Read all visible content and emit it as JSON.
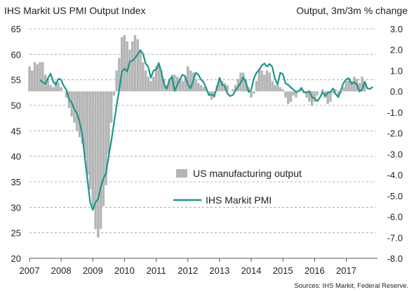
{
  "chart_data": {
    "type": "bar+line",
    "title_left": "IHS  Markit US PMI Output Index",
    "title_right": "Output, 3m/3m  % change",
    "source": "Sources:  IHS Markit,  Federal Reserve.",
    "x_ticks": [
      "2007",
      "2008",
      "2009",
      "2010",
      "2011",
      "2012",
      "2013",
      "2014",
      "2015",
      "2016",
      "2017"
    ],
    "x_range": [
      2007.0,
      2017.92
    ],
    "y_left": {
      "ticks": [
        "20",
        "25",
        "30",
        "35",
        "40",
        "45",
        "50",
        "55",
        "60",
        "65"
      ],
      "range": [
        20,
        65
      ]
    },
    "y_right": {
      "ticks": [
        "-8.0",
        "-7.0",
        "-6.0",
        "-5.0",
        "-4.0",
        "-3.0",
        "-2.0",
        "-1.0",
        "0.0",
        "1.0",
        "2.0",
        "3.0"
      ],
      "range": [
        -8.0,
        3.0
      ]
    },
    "grid": true,
    "legend_position": "bottom-center",
    "colors": {
      "bars": "#b5b5b5",
      "line": "#1a978a",
      "grid": "#9a9a9a"
    },
    "series": [
      {
        "name": "US manufacturing output",
        "kind": "bar",
        "axis": "right",
        "x": [
          2007.0,
          2007.083,
          2007.167,
          2007.25,
          2007.333,
          2007.417,
          2007.5,
          2007.583,
          2007.667,
          2007.75,
          2007.833,
          2007.917,
          2008.0,
          2008.083,
          2008.167,
          2008.25,
          2008.333,
          2008.417,
          2008.5,
          2008.583,
          2008.667,
          2008.75,
          2008.833,
          2008.917,
          2009.0,
          2009.083,
          2009.167,
          2009.25,
          2009.333,
          2009.417,
          2009.5,
          2009.583,
          2009.667,
          2009.75,
          2009.833,
          2009.917,
          2010.0,
          2010.083,
          2010.167,
          2010.25,
          2010.333,
          2010.417,
          2010.5,
          2010.583,
          2010.667,
          2010.75,
          2010.833,
          2010.917,
          2011.0,
          2011.083,
          2011.167,
          2011.25,
          2011.333,
          2011.417,
          2011.5,
          2011.583,
          2011.667,
          2011.75,
          2011.833,
          2011.917,
          2012.0,
          2012.083,
          2012.167,
          2012.25,
          2012.333,
          2012.417,
          2012.5,
          2012.583,
          2012.667,
          2012.75,
          2012.833,
          2012.917,
          2013.0,
          2013.083,
          2013.167,
          2013.25,
          2013.333,
          2013.417,
          2013.5,
          2013.583,
          2013.667,
          2013.75,
          2013.833,
          2013.917,
          2014.0,
          2014.083,
          2014.167,
          2014.25,
          2014.333,
          2014.417,
          2014.5,
          2014.583,
          2014.667,
          2014.75,
          2014.833,
          2014.917,
          2015.0,
          2015.083,
          2015.167,
          2015.25,
          2015.333,
          2015.417,
          2015.5,
          2015.583,
          2015.667,
          2015.75,
          2015.833,
          2015.917,
          2016.0,
          2016.083,
          2016.167,
          2016.25,
          2016.333,
          2016.417,
          2016.5,
          2016.583,
          2016.667,
          2016.75,
          2016.833,
          2016.917,
          2017.0,
          2017.083,
          2017.167,
          2017.25,
          2017.333,
          2017.417,
          2017.5,
          2017.583
        ],
        "values": [
          1.2,
          1.0,
          1.4,
          1.3,
          1.4,
          1.4,
          0.8,
          0.6,
          0.3,
          0.2,
          0.5,
          0.4,
          0.2,
          0.0,
          -0.3,
          -0.8,
          -1.2,
          -1.5,
          -1.9,
          -2.2,
          -2.5,
          -3.2,
          -4.0,
          -4.7,
          -5.5,
          -6.6,
          -7.0,
          -6.6,
          -5.5,
          -4.5,
          -3.0,
          -1.5,
          -0.2,
          1.0,
          1.6,
          2.6,
          2.7,
          2.4,
          2.0,
          2.4,
          2.7,
          2.5,
          2.0,
          1.4,
          1.0,
          0.7,
          0.5,
          0.7,
          1.2,
          1.3,
          1.0,
          0.6,
          0.3,
          0.6,
          0.8,
          0.8,
          0.7,
          0.6,
          0.5,
          0.7,
          1.2,
          1.0,
          0.9,
          0.6,
          0.4,
          0.3,
          0.2,
          0.2,
          -0.2,
          -0.4,
          -0.3,
          0.3,
          0.6,
          0.5,
          0.4,
          0.3,
          0.0,
          0.1,
          0.3,
          0.6,
          0.9,
          0.9,
          0.6,
          0.2,
          -0.3,
          -0.1,
          0.5,
          1.1,
          1.0,
          0.8,
          1.0,
          0.9,
          0.5,
          0.3,
          0.3,
          0.2,
          0.1,
          -0.3,
          -0.6,
          -0.5,
          -0.2,
          -0.3,
          0.0,
          0.2,
          -0.1,
          -0.3,
          -0.5,
          -0.7,
          -0.5,
          -0.2,
          0.0,
          0.1,
          -0.3,
          -0.6,
          -0.5,
          -0.1,
          0.1,
          -0.2,
          -0.1,
          0.2,
          0.5,
          0.6,
          0.5,
          0.7,
          0.6,
          0.4,
          0.7,
          0.5
        ]
      },
      {
        "name": "IHS Markit PMI",
        "kind": "line",
        "axis": "left",
        "x": [
          2007.333,
          2007.417,
          2007.5,
          2007.583,
          2007.667,
          2007.75,
          2007.833,
          2007.917,
          2008.0,
          2008.083,
          2008.167,
          2008.25,
          2008.333,
          2008.417,
          2008.5,
          2008.583,
          2008.667,
          2008.75,
          2008.833,
          2008.917,
          2009.0,
          2009.083,
          2009.167,
          2009.25,
          2009.333,
          2009.417,
          2009.5,
          2009.583,
          2009.667,
          2009.75,
          2009.833,
          2009.917,
          2010.0,
          2010.083,
          2010.167,
          2010.25,
          2010.333,
          2010.417,
          2010.5,
          2010.583,
          2010.667,
          2010.75,
          2010.833,
          2010.917,
          2011.0,
          2011.083,
          2011.167,
          2011.25,
          2011.333,
          2011.417,
          2011.5,
          2011.583,
          2011.667,
          2011.75,
          2011.833,
          2011.917,
          2012.0,
          2012.083,
          2012.167,
          2012.25,
          2012.333,
          2012.417,
          2012.5,
          2012.583,
          2012.667,
          2012.75,
          2012.833,
          2012.917,
          2013.0,
          2013.083,
          2013.167,
          2013.25,
          2013.333,
          2013.417,
          2013.5,
          2013.583,
          2013.667,
          2013.75,
          2013.833,
          2013.917,
          2014.0,
          2014.083,
          2014.167,
          2014.25,
          2014.333,
          2014.417,
          2014.5,
          2014.583,
          2014.667,
          2014.75,
          2014.833,
          2014.917,
          2015.0,
          2015.083,
          2015.167,
          2015.25,
          2015.333,
          2015.417,
          2015.5,
          2015.583,
          2015.667,
          2015.75,
          2015.833,
          2015.917,
          2016.0,
          2016.083,
          2016.167,
          2016.25,
          2016.333,
          2016.417,
          2016.5,
          2016.583,
          2016.667,
          2016.75,
          2016.833,
          2016.917,
          2017.0,
          2017.083,
          2017.167,
          2017.25,
          2017.333,
          2017.417,
          2017.5,
          2017.583,
          2017.667,
          2017.75,
          2017.833
        ],
        "values": [
          55.0,
          54.5,
          54.2,
          55.3,
          56.2,
          54.6,
          54.0,
          55.2,
          55.0,
          53.8,
          53.0,
          51.2,
          50.5,
          49.2,
          48.4,
          46.8,
          44.2,
          39.5,
          35.2,
          31.0,
          29.5,
          31.0,
          31.6,
          34.0,
          35.6,
          36.7,
          40.0,
          43.0,
          46.5,
          50.0,
          53.0,
          56.6,
          57.2,
          56.6,
          58.6,
          58.7,
          59.3,
          60.0,
          60.8,
          60.1,
          58.2,
          57.5,
          55.4,
          56.8,
          57.0,
          58.3,
          56.4,
          54.0,
          53.2,
          55.0,
          55.6,
          52.8,
          54.0,
          55.1,
          56.0,
          55.7,
          54.1,
          53.3,
          54.8,
          56.4,
          56.0,
          55.0,
          54.5,
          53.2,
          52.0,
          52.1,
          51.8,
          53.4,
          55.4,
          54.1,
          53.7,
          52.3,
          51.8,
          52.0,
          52.9,
          53.6,
          54.4,
          55.5,
          54.5,
          52.6,
          53.0,
          55.3,
          56.4,
          56.9,
          57.8,
          58.2,
          57.6,
          58.1,
          57.5,
          55.2,
          54.1,
          56.4,
          56.1,
          54.3,
          54.0,
          53.5,
          53.1,
          52.6,
          52.8,
          53.4,
          52.6,
          52.5,
          52.8,
          51.6,
          51.4,
          50.8,
          51.5,
          52.6,
          51.8,
          52.5,
          52.6,
          53.3,
          52.2,
          51.6,
          53.0,
          54.4,
          55.1,
          55.3,
          54.2,
          54.5,
          54.1,
          52.7,
          53.1,
          54.6,
          53.3,
          53.2,
          53.6
        ]
      }
    ]
  }
}
